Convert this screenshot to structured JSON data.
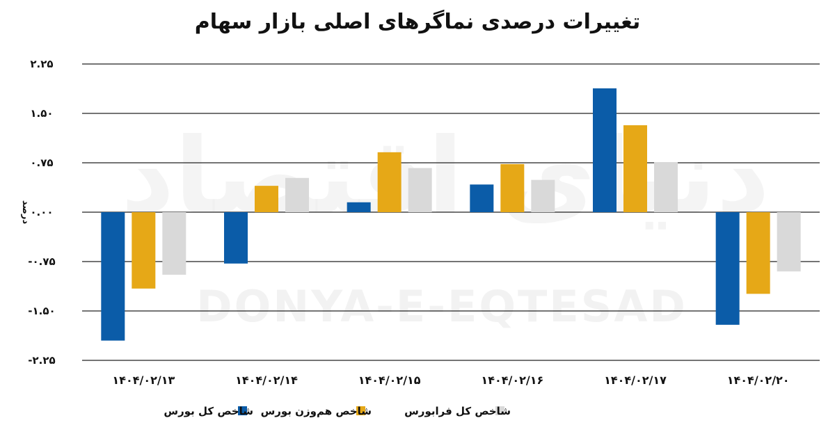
{
  "chart_data": {
    "type": "bar",
    "title": "تغییرات درصدی نماگرهای اصلی بازار سهام",
    "ylabel": "درصد",
    "xlabel": "",
    "ylim": [
      -2.25,
      2.25
    ],
    "yticks": [
      2.25,
      1.5,
      0.75,
      0.0,
      -0.75,
      -1.5,
      -2.25
    ],
    "ytick_labels": [
      "۲.۲۵",
      "۱.۵۰",
      "۰.۷۵",
      "۰.۰۰",
      "-۰.۷۵",
      "-۱.۵۰",
      "-۲.۲۵"
    ],
    "categories": [
      "۱۴۰۴/۰۲/۱۳",
      "۱۴۰۴/۰۲/۱۴",
      "۱۴۰۴/۰۲/۱۵",
      "۱۴۰۴/۰۲/۱۶",
      "۱۴۰۴/۰۲/۱۷",
      "۱۴۰۴/۰۲/۲۰"
    ],
    "series": [
      {
        "name": "شاخص کل بورس",
        "color": "#0b5ca8",
        "values": [
          -1.95,
          -0.78,
          0.15,
          0.42,
          1.88,
          -1.71
        ]
      },
      {
        "name": "شاخص هم‌وزن بورس",
        "color": "#e6a817",
        "values": [
          -1.16,
          0.4,
          0.91,
          0.73,
          1.32,
          -1.24
        ]
      },
      {
        "name": "شاخص کل فرابورس",
        "color": "#d9d9d9",
        "values": [
          -0.95,
          0.52,
          0.67,
          0.49,
          0.76,
          -0.9
        ]
      }
    ],
    "grid": true,
    "legend_position": "bottom-center"
  },
  "watermark": {
    "fa": "دنیای اقتصاد",
    "en": "DONYA-E-EQTESAD"
  }
}
